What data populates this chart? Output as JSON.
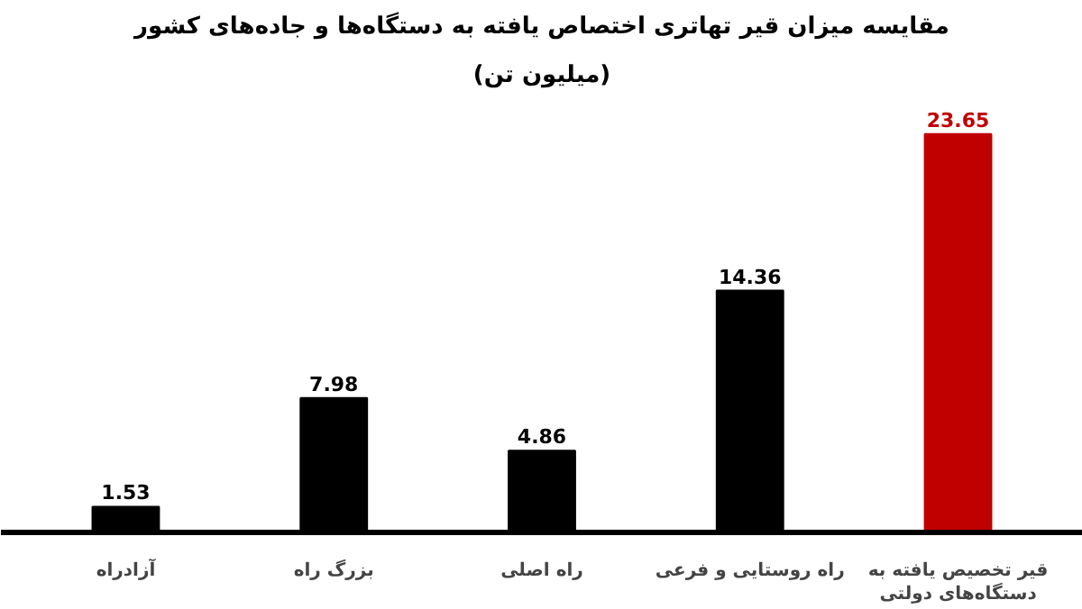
{
  "chart_data": {
    "type": "bar",
    "title": "مقایسه میزان قیر تهاتری اختصاص یافته به دستگاه‌ها و جاده‌های کشور",
    "subtitle": "(میلیون تن)",
    "categories": [
      "آزادراه",
      "بزرگ راه",
      "راه اصلی",
      "راه روستایی و فرعی",
      "قیر تخصیص یافته به دستگاه‌های دولتی"
    ],
    "values": [
      1.53,
      7.98,
      4.86,
      14.36,
      23.65
    ],
    "colors": [
      "#000000",
      "#000000",
      "#000000",
      "#000000",
      "#c00000"
    ],
    "data_labels": true,
    "grid": false
  }
}
